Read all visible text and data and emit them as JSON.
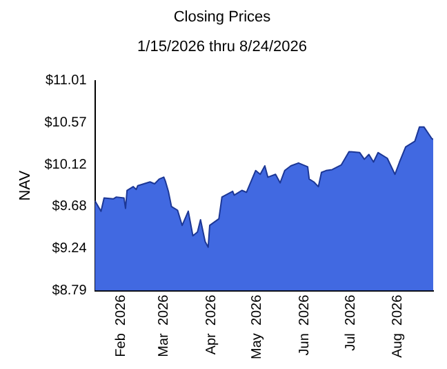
{
  "chart_data": {
    "type": "area",
    "title": "Closing Prices",
    "subtitle": "1/15/2026 thru 8/24/2026",
    "ylabel": "NAV",
    "x": [
      "2026-01-15",
      "2026-01-19",
      "2026-01-21",
      "2026-01-27",
      "2026-01-29",
      "2026-02-03",
      "2026-02-04",
      "2026-02-05",
      "2026-02-09",
      "2026-02-11",
      "2026-02-12",
      "2026-02-20",
      "2026-02-23",
      "2026-02-26",
      "2026-03-01",
      "2026-03-02",
      "2026-03-04",
      "2026-03-06",
      "2026-03-10",
      "2026-03-13",
      "2026-03-17",
      "2026-03-20",
      "2026-03-23",
      "2026-03-25",
      "2026-03-28",
      "2026-03-30",
      "2026-03-31",
      "2026-04-06",
      "2026-04-08",
      "2026-04-15",
      "2026-04-16",
      "2026-04-21",
      "2026-04-24",
      "2026-04-30",
      "2026-05-03",
      "2026-05-06",
      "2026-05-08",
      "2026-05-13",
      "2026-05-16",
      "2026-05-19",
      "2026-05-23",
      "2026-05-28",
      "2026-06-03",
      "2026-06-04",
      "2026-06-07",
      "2026-06-10",
      "2026-06-12",
      "2026-06-15",
      "2026-06-19",
      "2026-06-25",
      "2026-06-30",
      "2026-07-07",
      "2026-07-10",
      "2026-07-13",
      "2026-07-16",
      "2026-07-19",
      "2026-07-25",
      "2026-07-30",
      "2026-08-02",
      "2026-08-06",
      "2026-08-12",
      "2026-08-15",
      "2026-08-18",
      "2026-08-23",
      "2026-08-24"
    ],
    "series": [
      {
        "color": "#4169e1",
        "values": [
          9.74,
          9.63,
          9.77,
          9.76,
          9.78,
          9.77,
          9.66,
          9.85,
          9.89,
          9.86,
          9.9,
          9.94,
          9.92,
          9.97,
          9.99,
          9.95,
          9.84,
          9.68,
          9.64,
          9.48,
          9.63,
          9.37,
          9.41,
          9.54,
          9.31,
          9.25,
          9.48,
          9.55,
          9.78,
          9.84,
          9.8,
          9.85,
          9.83,
          10.06,
          10.02,
          10.11,
          9.99,
          10.02,
          9.93,
          10.06,
          10.11,
          10.14,
          10.1,
          9.97,
          9.94,
          9.89,
          10.04,
          10.06,
          10.07,
          10.12,
          10.26,
          10.25,
          10.18,
          10.23,
          10.15,
          10.25,
          10.19,
          10.02,
          10.15,
          10.31,
          10.37,
          10.52,
          10.52,
          10.4,
          10.39
        ]
      }
    ],
    "xlim": [
      "2026-01-15",
      "2026-08-24"
    ],
    "xticks": [
      {
        "value": "2026-02-01",
        "label": "Feb  2026"
      },
      {
        "value": "2026-03-01",
        "label": "Mar  2026"
      },
      {
        "value": "2026-04-01",
        "label": "Apr  2026"
      },
      {
        "value": "2026-05-01",
        "label": "May  2026"
      },
      {
        "value": "2026-06-01",
        "label": "Jun  2026"
      },
      {
        "value": "2026-07-01",
        "label": "Jul  2026"
      },
      {
        "value": "2026-08-01",
        "label": "Aug  2026"
      }
    ],
    "ylim": [
      8.79,
      11.01
    ],
    "yticks": [
      {
        "value": 8.79,
        "label": "$8.79"
      },
      {
        "value": 9.24,
        "label": "$9.24"
      },
      {
        "value": 9.68,
        "label": "$9.68"
      },
      {
        "value": 10.12,
        "label": "$10.12"
      },
      {
        "value": 10.57,
        "label": "$10.57"
      },
      {
        "value": 11.01,
        "label": "$11.01"
      }
    ],
    "grid": false,
    "legend": false
  }
}
